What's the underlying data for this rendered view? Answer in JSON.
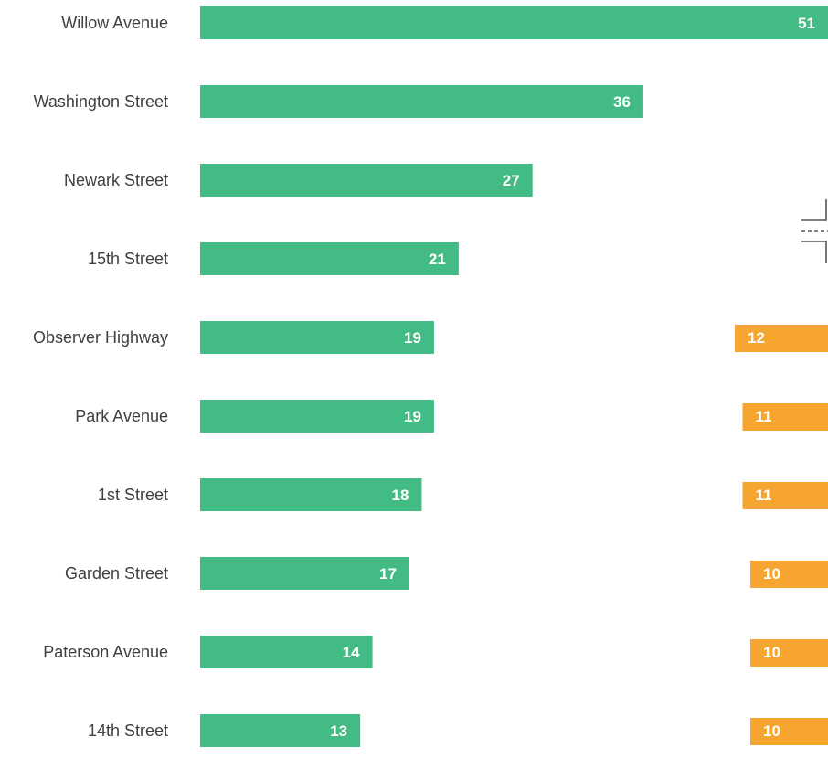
{
  "colors": {
    "primary_series": "#43bb84",
    "secondary_series": "#f7a531",
    "label_text": "#3f3f3f",
    "value_text": "#ffffff"
  },
  "icons": {
    "right_edge_icon": "street-intersection-icon"
  },
  "chart_data": {
    "type": "bar",
    "orientation": "horizontal",
    "title": "",
    "xlabel": "",
    "ylabel": "",
    "grid": false,
    "legend": "none",
    "categories": [
      "Willow Avenue",
      "Washington Street",
      "Newark Street",
      "15th Street",
      "Observer Highway",
      "Park Avenue",
      "1st Street",
      "Garden Street",
      "Paterson Avenue",
      "14th Street"
    ],
    "series": [
      {
        "values": [
          51,
          36,
          27,
          21,
          19,
          19,
          18,
          17,
          14,
          13
        ],
        "labels": [
          "51",
          "36",
          "27",
          "21",
          "19",
          "19",
          "18",
          "17",
          "14",
          "13"
        ],
        "color": "#43bb84"
      },
      {
        "values": [
          null,
          null,
          null,
          null,
          12,
          11,
          11,
          10,
          10,
          10
        ],
        "labels": [
          null,
          null,
          null,
          null,
          "12",
          "11",
          "11",
          "10",
          "10",
          "10"
        ],
        "color": "#f7a531"
      }
    ]
  }
}
